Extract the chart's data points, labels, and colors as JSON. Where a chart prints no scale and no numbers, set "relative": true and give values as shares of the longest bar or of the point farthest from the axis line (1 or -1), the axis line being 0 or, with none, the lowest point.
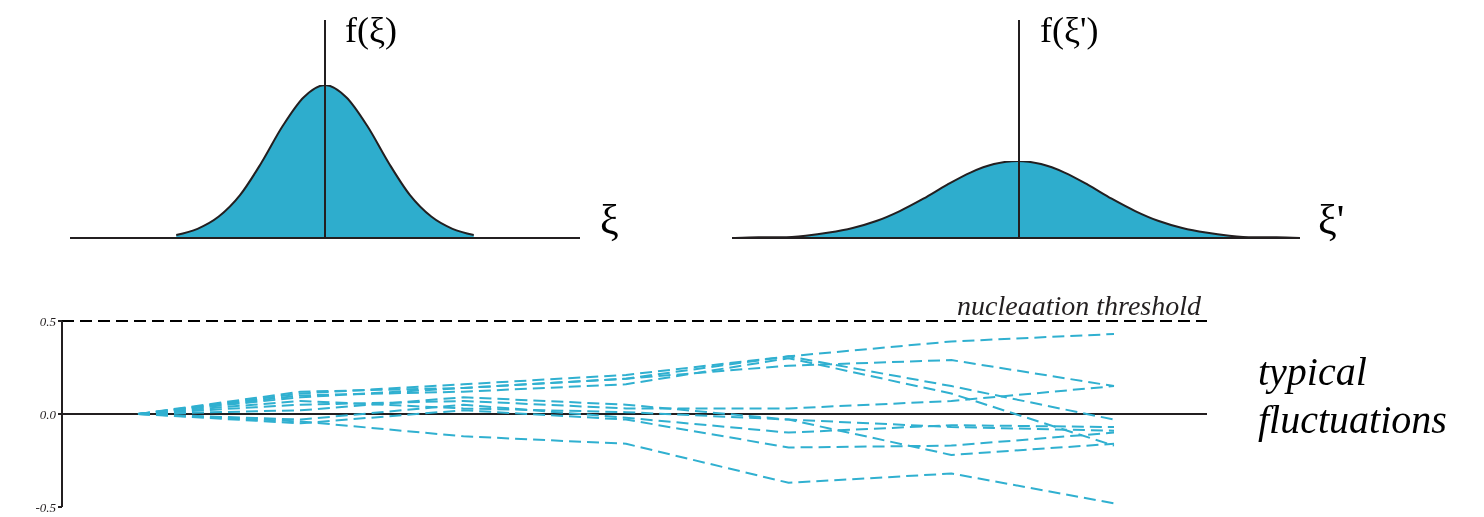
{
  "chart_data": [
    {
      "type": "area",
      "relative": true,
      "ylabel": "f(ξ)",
      "xlabel": "ξ",
      "tick_labels": false,
      "color": "#2eadcd",
      "categories": [
        null,
        null,
        null,
        null,
        null,
        null,
        null,
        null,
        null,
        null,
        null,
        null,
        null,
        null,
        null,
        null,
        null,
        null,
        null,
        null,
        null,
        null,
        null,
        null,
        null
      ],
      "values": [
        null,
        null,
        null,
        null,
        null,
        0.02,
        0.06,
        0.14,
        0.28,
        0.49,
        0.73,
        0.92,
        1,
        0.92,
        0.73,
        0.49,
        0.28,
        0.14,
        0.06,
        0.02,
        null,
        null,
        null,
        null,
        null
      ]
    },
    {
      "type": "area",
      "relative": true,
      "ylabel": "f(ξ')",
      "xlabel": "ξ'",
      "tick_labels": false,
      "color": "#2eadcd",
      "categories": [
        null,
        null,
        null,
        null,
        null,
        null,
        null,
        null,
        null,
        null,
        null,
        null,
        null,
        null,
        null,
        null,
        null,
        null,
        null,
        null,
        null,
        null,
        null,
        null,
        null
      ],
      "values": [
        0,
        0.01,
        0.01,
        0.03,
        0.07,
        0.13,
        0.22,
        0.35,
        0.51,
        0.69,
        0.85,
        0.96,
        1,
        0.96,
        0.85,
        0.69,
        0.51,
        0.35,
        0.22,
        0.13,
        0.07,
        0.03,
        0.01,
        0.01,
        0
      ]
    },
    {
      "type": "line",
      "tick_labels": "y",
      "line_style": "dashed",
      "marker": "none",
      "ylim": [
        -0.5,
        0.5
      ],
      "yticks": [
        0.5,
        {
          "value": 0,
          "label": "0.0"
        },
        -0.5
      ],
      "categories": [
        null,
        null,
        null,
        null,
        null,
        null,
        null
      ],
      "series": [
        {
          "color": "#30b0d0",
          "values": [
            0,
            0.11,
            0.16,
            0.21,
            0.31,
            0.39,
            0.43
          ]
        },
        {
          "color": "#30b0d0",
          "values": [
            0,
            0.12,
            0.14,
            0.19,
            0.31,
            0.15,
            -0.03
          ]
        },
        {
          "color": "#30b0d0",
          "values": [
            0,
            0.1,
            0.12,
            0.16,
            0.3,
            0.11,
            -0.17
          ]
        },
        {
          "color": "#30b0d0",
          "values": [
            0,
            0.09,
            0.14,
            0.19,
            0.26,
            0.29,
            0.15
          ]
        },
        {
          "color": "#30b0d0",
          "values": [
            0,
            0.05,
            0.07,
            0.03,
            0.03,
            0.07,
            0.15
          ]
        },
        {
          "color": "#30b0d0",
          "values": [
            0,
            0.07,
            0.03,
            0.01,
            -0.03,
            -0.07,
            -0.09
          ]
        },
        {
          "color": "#30b0d0",
          "values": [
            0,
            -0.03,
            0.05,
            -0.02,
            -0.1,
            -0.06,
            -0.07
          ]
        },
        {
          "color": "#30b0d0",
          "values": [
            0,
            -0.05,
            0.02,
            -0.03,
            -0.18,
            -0.17,
            -0.1
          ]
        },
        {
          "color": "#30b0d0",
          "values": [
            0,
            0.02,
            0.09,
            0.05,
            -0.03,
            -0.22,
            -0.16
          ]
        },
        {
          "color": "#30b0d0",
          "values": [
            0,
            -0.04,
            -0.12,
            -0.16,
            -0.37,
            -0.32,
            -0.48
          ]
        }
      ],
      "ref_lines": [
        {
          "axis": "y",
          "value": 0.5,
          "label": "nucleaation threshold",
          "color": "#000000",
          "line_style": "dashed"
        }
      ],
      "annotations": [
        "typical fluctuations"
      ]
    }
  ]
}
